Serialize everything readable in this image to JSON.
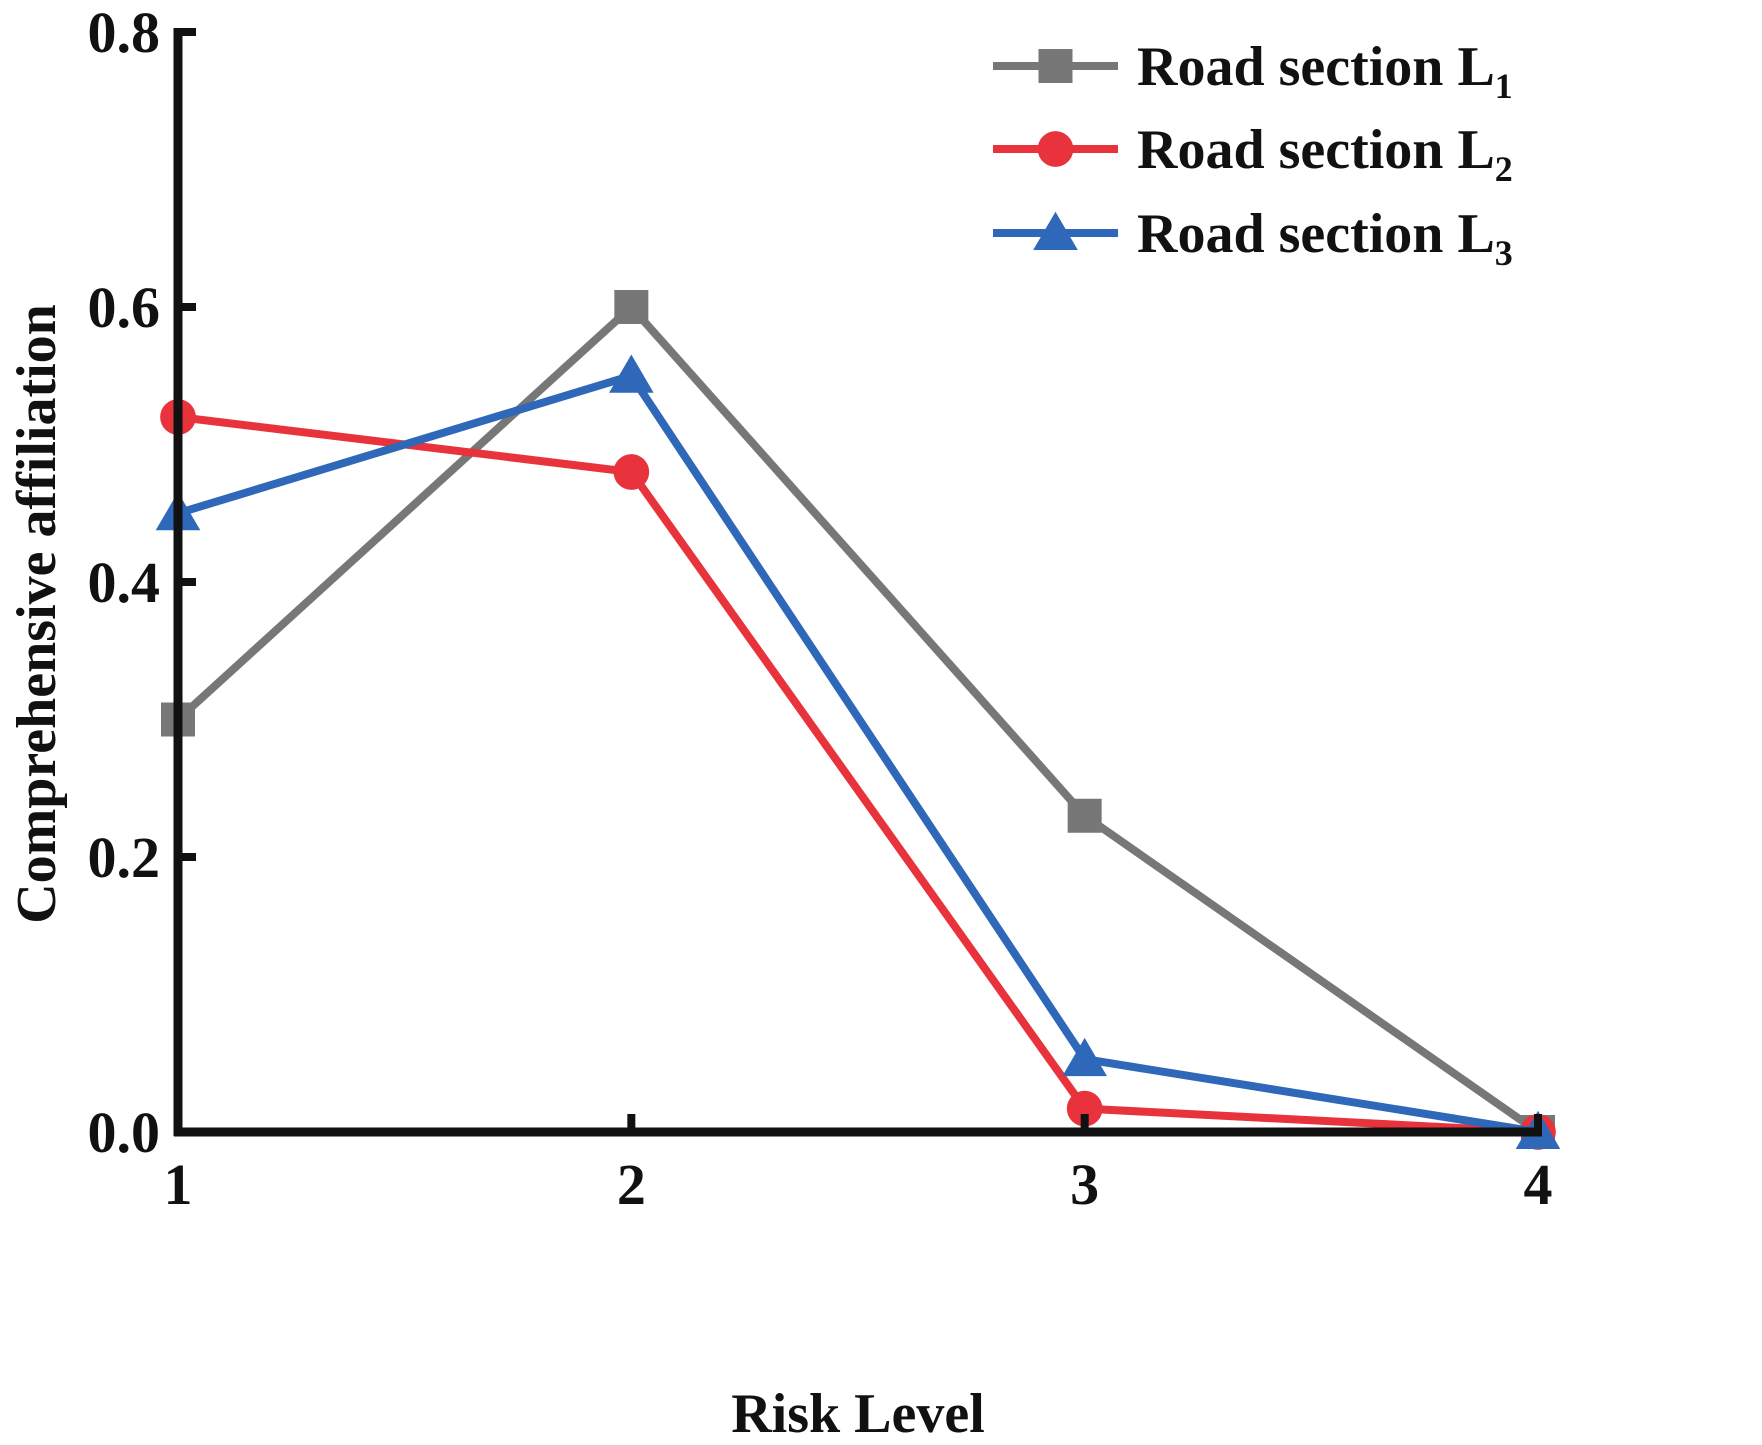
{
  "chart_data": {
    "type": "line",
    "title": "",
    "xlabel": "Risk Level",
    "ylabel": "Comprehensive affiliation",
    "x": [
      1,
      2,
      3,
      4
    ],
    "x_ticks": [
      "1",
      "2",
      "3",
      "4"
    ],
    "xlim": [
      1,
      4
    ],
    "ylim": [
      0,
      0.8
    ],
    "y_ticks": [
      "0.0",
      "0.2",
      "0.4",
      "0.6",
      "0.8"
    ],
    "grid": false,
    "legend_position": "top-right",
    "series": [
      {
        "name_main": "Road section L",
        "name_sub": "1",
        "values": [
          0.3,
          0.6,
          0.23,
          0.0
        ],
        "color": "#777777",
        "marker": "square"
      },
      {
        "name_main": "Road section L",
        "name_sub": "2",
        "values": [
          0.52,
          0.48,
          0.017,
          0.0
        ],
        "color": "#e8333c",
        "marker": "circle"
      },
      {
        "name_main": "Road section L",
        "name_sub": "3",
        "values": [
          0.45,
          0.55,
          0.053,
          0.0
        ],
        "color": "#2f68b8",
        "marker": "triangle"
      }
    ]
  }
}
